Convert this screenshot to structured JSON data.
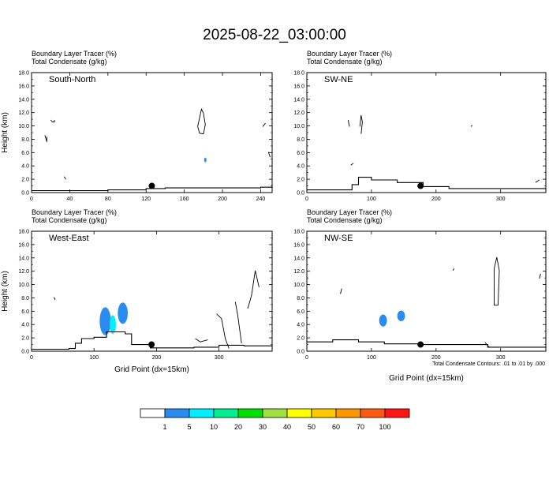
{
  "title": "2025-08-22_03:00:00",
  "footer_note": "Total Condensate Contours: .01 to .01 by .000",
  "colorbar": {
    "colors": [
      "#ffffff",
      "#2a8cf0",
      "#00f0ff",
      "#00f090",
      "#00e000",
      "#a0e040",
      "#ffff00",
      "#ffc800",
      "#ff9600",
      "#ff5a14",
      "#ff1414"
    ],
    "labels": [
      "1",
      "5",
      "10",
      "20",
      "30",
      "40",
      "50",
      "60",
      "70",
      "100"
    ]
  },
  "chart_data": [
    {
      "type": "contour",
      "panel_label": "South-North",
      "field_labels": [
        "Boundary Layer Tracer   (%)",
        "Total Condensate   (g/kg)"
      ],
      "ylabel": "Height (km)",
      "xlabel": "",
      "xlim": [
        0,
        252
      ],
      "ylim": [
        0,
        18
      ],
      "xticks": [
        0,
        40,
        80,
        120,
        160,
        200,
        240
      ],
      "yticks": [
        "0.0",
        "2.0",
        "4.0",
        "6.0",
        "8.0",
        "10.0",
        "12.0",
        "14.0",
        "16.0",
        "18.0"
      ],
      "marker": {
        "x": 126,
        "y": 1.0
      },
      "terrain": [
        [
          0,
          0.3
        ],
        [
          80,
          0.4
        ],
        [
          120,
          0.6
        ],
        [
          140,
          0.7
        ],
        [
          180,
          0.7
        ],
        [
          240,
          0.8
        ],
        [
          252,
          1.2
        ]
      ],
      "shaded": [
        {
          "x": 182,
          "y": 4.9,
          "rx": 1.2,
          "ry": 0.35,
          "color": "#2a8cf0"
        }
      ],
      "contours": [
        [
          [
            20,
            10.9
          ],
          [
            22,
            10.6
          ],
          [
            24,
            10.6
          ],
          [
            24,
            10.9
          ]
        ],
        [
          [
            14,
            8.6
          ],
          [
            16,
            7.6
          ],
          [
            16,
            8.4
          ]
        ],
        [
          [
            34,
            2.4
          ],
          [
            36,
            2.0
          ]
        ],
        [
          [
            248,
            6.1
          ],
          [
            250,
            5.3
          ]
        ],
        [
          [
            242,
            9.9
          ],
          [
            245,
            10.4
          ]
        ],
        [
          [
            174,
            9.9
          ],
          [
            178,
            12.5
          ],
          [
            180,
            11.9
          ],
          [
            182,
            10.2
          ],
          [
            180,
            8.8
          ],
          [
            176,
            8.9
          ],
          [
            174,
            9.9
          ]
        ]
      ]
    },
    {
      "type": "contour",
      "panel_label": "SW-NE",
      "field_labels": [
        "Boundary Layer Tracer   (%)",
        "Total Condensate   (g/kg)"
      ],
      "ylabel": "",
      "xlabel": "",
      "xlim": [
        0,
        370
      ],
      "ylim": [
        0,
        18
      ],
      "xticks": [
        0,
        100,
        200,
        300
      ],
      "yticks": [
        "0.0",
        "2.0",
        "4.0",
        "6.0",
        "8.0",
        "10.0",
        "12.0",
        "14.0",
        "16.0",
        "18.0"
      ],
      "marker": {
        "x": 176,
        "y": 1.0
      },
      "terrain": [
        [
          0,
          0.4
        ],
        [
          50,
          0.4
        ],
        [
          70,
          1.2
        ],
        [
          80,
          2.3
        ],
        [
          100,
          1.9
        ],
        [
          140,
          1.5
        ],
        [
          180,
          0.9
        ],
        [
          220,
          0.6
        ],
        [
          300,
          0.6
        ],
        [
          370,
          0.5
        ]
      ],
      "shaded": [],
      "contours": [
        [
          [
            64,
            10.9
          ],
          [
            66,
            9.9
          ]
        ],
        [
          [
            82,
            9.9
          ],
          [
            84,
            11.6
          ],
          [
            86,
            10.6
          ],
          [
            84,
            8.8
          ]
        ],
        [
          [
            254,
            9.9
          ],
          [
            256,
            10.1
          ]
        ],
        [
          [
            68,
            4.1
          ],
          [
            72,
            4.4
          ]
        ],
        [
          [
            354,
            1.5
          ],
          [
            360,
            1.9
          ]
        ]
      ]
    },
    {
      "type": "contour",
      "panel_label": "West-East",
      "field_labels": [
        "Boundary Layer Tracer   (%)",
        "Total Condensate   (g/kg)"
      ],
      "ylabel": "Height (km)",
      "xlabel": "Grid Point (dx=15km)",
      "xlim": [
        0,
        385
      ],
      "ylim": [
        0,
        18
      ],
      "xticks": [
        0,
        100,
        200,
        300
      ],
      "yticks": [
        "0.0",
        "2.0",
        "4.0",
        "6.0",
        "8.0",
        "10.0",
        "12.0",
        "14.0",
        "16.0",
        "18.0"
      ],
      "marker": {
        "x": 192,
        "y": 1.0
      },
      "terrain": [
        [
          0,
          0.3
        ],
        [
          60,
          0.4
        ],
        [
          70,
          1.2
        ],
        [
          80,
          1.9
        ],
        [
          100,
          2.1
        ],
        [
          120,
          2.9
        ],
        [
          150,
          2.6
        ],
        [
          160,
          1.0
        ],
        [
          190,
          0.5
        ],
        [
          260,
          0.6
        ],
        [
          300,
          0.9
        ],
        [
          340,
          0.8
        ],
        [
          385,
          0.6
        ]
      ],
      "shaded": [
        {
          "x": 118,
          "y": 4.5,
          "rx": 9,
          "ry": 2.1,
          "color": "#2a8cf0"
        },
        {
          "x": 146,
          "y": 5.7,
          "rx": 8,
          "ry": 1.6,
          "color": "#2a8cf0"
        },
        {
          "x": 130,
          "y": 4.0,
          "rx": 5,
          "ry": 1.4,
          "color": "#00f0ff"
        }
      ],
      "contours": [
        [
          [
            36,
            8.1
          ],
          [
            38,
            7.7
          ]
        ],
        [
          [
            262,
            1.9
          ],
          [
            270,
            1.4
          ],
          [
            282,
            1.7
          ]
        ],
        [
          [
            296,
            5.6
          ],
          [
            304,
            4.9
          ],
          [
            310,
            1.9
          ],
          [
            316,
            0.4
          ]
        ],
        [
          [
            326,
            7.4
          ],
          [
            330,
            5.4
          ],
          [
            336,
            1.2
          ]
        ],
        [
          [
            346,
            6.4
          ],
          [
            352,
            8.4
          ],
          [
            358,
            12.1
          ],
          [
            364,
            9.6
          ]
        ]
      ]
    },
    {
      "type": "contour",
      "panel_label": "NW-SE",
      "field_labels": [
        "Boundary Layer Tracer   (%)",
        "Total Condensate   (g/kg)"
      ],
      "ylabel": "",
      "xlabel": "Grid Point (dx=15km)",
      "xlim": [
        0,
        370
      ],
      "ylim": [
        0,
        18
      ],
      "xticks": [
        0,
        100,
        200,
        300
      ],
      "yticks": [
        "0.0",
        "2.0",
        "4.0",
        "6.0",
        "8.0",
        "10.0",
        "12.0",
        "14.0",
        "16.0",
        "18.0"
      ],
      "marker": {
        "x": 176,
        "y": 1.0
      },
      "terrain": [
        [
          0,
          1.4
        ],
        [
          40,
          1.7
        ],
        [
          80,
          1.4
        ],
        [
          120,
          1.1
        ],
        [
          180,
          1.0
        ],
        [
          240,
          1.0
        ],
        [
          280,
          0.6
        ],
        [
          370,
          0.4
        ]
      ],
      "shaded": [
        {
          "x": 118,
          "y": 4.6,
          "rx": 6,
          "ry": 0.9,
          "color": "#2a8cf0"
        },
        {
          "x": 146,
          "y": 5.3,
          "rx": 6,
          "ry": 0.8,
          "color": "#2a8cf0"
        }
      ],
      "contours": [
        [
          [
            52,
            8.6
          ],
          [
            54,
            9.4
          ]
        ],
        [
          [
            290,
            12.4
          ],
          [
            294,
            14.1
          ],
          [
            298,
            12.1
          ],
          [
            296,
            6.9
          ],
          [
            290,
            6.9
          ],
          [
            290,
            12.4
          ]
        ],
        [
          [
            226,
            12.1
          ],
          [
            228,
            12.4
          ]
        ],
        [
          [
            276,
            1.3
          ],
          [
            282,
            0.6
          ]
        ],
        [
          [
            360,
            10.9
          ],
          [
            362,
            11.6
          ]
        ]
      ]
    }
  ]
}
